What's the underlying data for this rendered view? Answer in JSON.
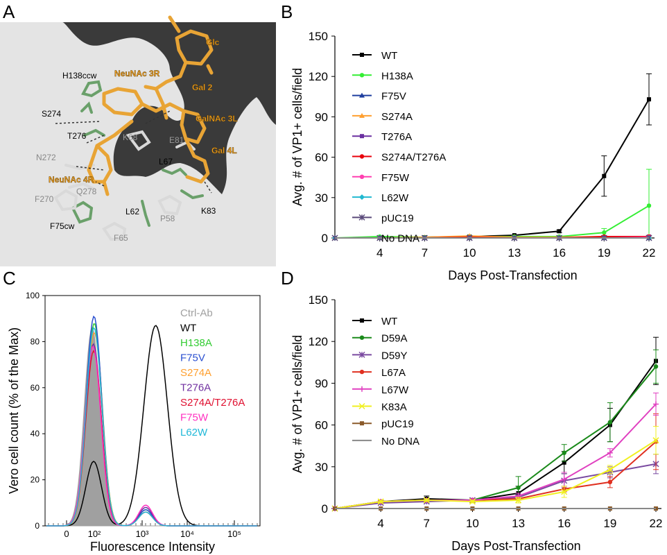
{
  "panels": {
    "A": {
      "letter": "A",
      "residues_dark": [
        "H138ccw",
        "S274",
        "T276",
        "L67",
        "L62",
        "K83",
        "F75cw"
      ],
      "residues_gray": [
        "K68",
        "E81",
        "N272",
        "Q278",
        "F270",
        "P58",
        "F65"
      ],
      "sugars": [
        "Glc",
        "NeuNAc 3R",
        "Gal 2",
        "GalNAc 3L",
        "Gal 4L",
        "NeuNAc 4R"
      ],
      "colors": {
        "surface": "#ebebeb",
        "sugar": "#e8a435",
        "sugar_label": "#f0a020",
        "residue": "#6aa06a"
      }
    },
    "B": {
      "letter": "B"
    },
    "C": {
      "letter": "C"
    },
    "D": {
      "letter": "D"
    }
  },
  "chart_data": [
    {
      "panel": "B",
      "type": "line",
      "xlabel": "Days Post-Transfection",
      "ylabel": "Avg. # of VP1+ cells/field",
      "x": [
        1,
        4,
        7,
        10,
        13,
        16,
        19,
        22
      ],
      "xticks": [
        4,
        7,
        10,
        13,
        16,
        19,
        22
      ],
      "ylim": [
        0,
        150
      ],
      "yticks": [
        0,
        30,
        60,
        90,
        120,
        150
      ],
      "legend_position": "left",
      "series": [
        {
          "name": "WT",
          "color": "#000000",
          "marker": "square",
          "values": [
            0,
            0,
            0.5,
            1,
            2,
            5,
            46,
            103
          ],
          "errors": [
            0,
            0,
            0,
            0,
            0,
            1,
            15,
            19
          ]
        },
        {
          "name": "H138A",
          "color": "#33ee33",
          "marker": "circle",
          "values": [
            0,
            1,
            0.5,
            1,
            1,
            1,
            4,
            24
          ],
          "errors": [
            0,
            0,
            0,
            0,
            0,
            0,
            3,
            27
          ]
        },
        {
          "name": "F75V",
          "color": "#1f3f9f",
          "marker": "triangle",
          "values": [
            0,
            0,
            0,
            0,
            0,
            0,
            0,
            0
          ],
          "errors": [
            0,
            0,
            0,
            0,
            0,
            0,
            0,
            0
          ]
        },
        {
          "name": "S274A",
          "color": "#ff9f2f",
          "marker": "triangle",
          "values": [
            0,
            0,
            0.5,
            1.5,
            0.5,
            0.5,
            1,
            1
          ],
          "errors": [
            0,
            0,
            0,
            0,
            0,
            0,
            0,
            0
          ]
        },
        {
          "name": "T276A",
          "color": "#6a2fa0",
          "marker": "square",
          "values": [
            0,
            0,
            0,
            0,
            0,
            0,
            0.5,
            1
          ],
          "errors": [
            0,
            0,
            0,
            0,
            0,
            0,
            0,
            0
          ]
        },
        {
          "name": "S274A/T276A",
          "color": "#e8000b",
          "marker": "circle",
          "values": [
            0,
            0,
            0,
            0.5,
            0,
            0,
            1,
            1
          ],
          "errors": [
            0,
            0,
            0,
            0,
            0,
            0,
            0,
            0
          ]
        },
        {
          "name": "F75W",
          "color": "#ff3fb0",
          "marker": "circle",
          "values": [
            0,
            0,
            0,
            0,
            0,
            0,
            0,
            0.5
          ],
          "errors": [
            0,
            0,
            0,
            0,
            0,
            0,
            0,
            0
          ]
        },
        {
          "name": "L62W",
          "color": "#20b8d0",
          "marker": "diamond",
          "values": [
            0,
            0,
            0,
            0,
            0,
            0,
            0,
            0
          ],
          "errors": [
            0,
            0,
            0,
            0,
            0,
            0,
            0,
            0
          ]
        },
        {
          "name": "pUC19",
          "color": "#5a4a7a",
          "marker": "star",
          "values": [
            0,
            0,
            0,
            0,
            0,
            0,
            0,
            0
          ],
          "errors": [
            0,
            0,
            0,
            0,
            0,
            0,
            0,
            0
          ]
        },
        {
          "name": "No DNA",
          "color": "#888888",
          "marker": "none",
          "values": [
            0,
            0,
            0,
            0,
            0,
            0,
            0,
            0
          ],
          "errors": [
            0,
            0,
            0,
            0,
            0,
            0,
            0,
            0
          ]
        }
      ]
    },
    {
      "panel": "C",
      "type": "area",
      "xlabel": "Fluorescence Intensity",
      "ylabel": "Vero cell count (% of the Max)",
      "xscale": "log",
      "xticks": [
        "0",
        "10²",
        "10³",
        "10⁴",
        "10⁵"
      ],
      "xtick_values": [
        0,
        100,
        1000,
        10000,
        100000
      ],
      "ylim": [
        0,
        100
      ],
      "yticks": [
        0,
        20,
        40,
        60,
        80,
        100
      ],
      "legend_position": "top-right",
      "series": [
        {
          "name": "Ctrl-Ab",
          "color": "#a0a0a0",
          "fill": true,
          "peak_x": 70,
          "peak_y": 86,
          "second_peak_x": null,
          "second_peak_y": null
        },
        {
          "name": "WT",
          "color": "#000000",
          "fill": false,
          "peak_x": 90,
          "peak_y": 28,
          "second_peak_x": 2000,
          "second_peak_y": 87
        },
        {
          "name": "H138A",
          "color": "#33cc33",
          "fill": false,
          "peak_x": 100,
          "peak_y": 88,
          "second_peak_x": 1200,
          "second_peak_y": 7
        },
        {
          "name": "F75V",
          "color": "#2a4fd0",
          "fill": false,
          "peak_x": 95,
          "peak_y": 91,
          "second_peak_x": 1200,
          "second_peak_y": 7
        },
        {
          "name": "S274A",
          "color": "#ffa030",
          "fill": false,
          "peak_x": 100,
          "peak_y": 84,
          "second_peak_x": 1200,
          "second_peak_y": 6
        },
        {
          "name": "T276A",
          "color": "#7030a0",
          "fill": false,
          "peak_x": 85,
          "peak_y": 79,
          "second_peak_x": 1200,
          "second_peak_y": 8
        },
        {
          "name": "S274A/T276A",
          "color": "#e01030",
          "fill": false,
          "peak_x": 90,
          "peak_y": 76,
          "second_peak_x": 1200,
          "second_peak_y": 6
        },
        {
          "name": "F75W",
          "color": "#ff30c0",
          "fill": false,
          "peak_x": 80,
          "peak_y": 78,
          "second_peak_x": 1200,
          "second_peak_y": 9
        },
        {
          "name": "L62W",
          "color": "#20b8d8",
          "fill": false,
          "peak_x": 95,
          "peak_y": 86,
          "second_peak_x": 1200,
          "second_peak_y": 6
        }
      ]
    },
    {
      "panel": "D",
      "type": "line",
      "xlabel": "Days Post-Transfection",
      "ylabel": "Avg. # of VP1+ cells/field",
      "x": [
        1,
        4,
        7,
        10,
        13,
        16,
        19,
        22
      ],
      "xticks": [
        4,
        7,
        10,
        13,
        16,
        19,
        22
      ],
      "ylim": [
        0,
        150
      ],
      "yticks": [
        0,
        30,
        60,
        90,
        120,
        150
      ],
      "legend_position": "left",
      "series": [
        {
          "name": "WT",
          "color": "#000000",
          "marker": "square",
          "values": [
            0,
            5,
            7,
            6,
            11,
            33,
            60,
            106
          ],
          "errors": [
            0,
            1,
            2,
            1,
            5,
            8,
            12,
            17
          ]
        },
        {
          "name": "D59A",
          "color": "#1a8a1a",
          "marker": "circle",
          "values": [
            0,
            5,
            6,
            6,
            15,
            40,
            62,
            102
          ],
          "errors": [
            0,
            1,
            1,
            1,
            8,
            6,
            14,
            12
          ]
        },
        {
          "name": "D59Y",
          "color": "#7a4aa0",
          "marker": "star",
          "values": [
            0,
            4,
            5,
            6,
            8,
            20,
            26,
            32
          ],
          "errors": [
            0,
            1,
            1,
            1,
            2,
            5,
            4,
            7
          ]
        },
        {
          "name": "L67A",
          "color": "#e03020",
          "marker": "circle",
          "values": [
            0,
            5,
            6,
            6,
            7,
            14,
            19,
            48
          ],
          "errors": [
            0,
            1,
            1,
            1,
            1,
            2,
            4,
            20
          ]
        },
        {
          "name": "L67W",
          "color": "#e040c0",
          "marker": "plus",
          "values": [
            0,
            5,
            6,
            6,
            9,
            21,
            40,
            75
          ],
          "errors": [
            0,
            1,
            1,
            1,
            2,
            5,
            3,
            8
          ]
        },
        {
          "name": "K83A",
          "color": "#f0f020",
          "marker": "x",
          "values": [
            0,
            5,
            6,
            5,
            6,
            12,
            28,
            49
          ],
          "errors": [
            0,
            1,
            1,
            1,
            2,
            4,
            3,
            10
          ]
        },
        {
          "name": "pUC19",
          "color": "#8a5a2a",
          "marker": "square",
          "values": [
            0,
            0,
            0,
            0,
            0,
            0,
            0,
            0
          ],
          "errors": [
            0,
            0,
            0,
            0,
            0,
            0,
            0,
            0
          ]
        },
        {
          "name": "No DNA",
          "color": "#888888",
          "marker": "none",
          "values": [
            0,
            0,
            0,
            0,
            0,
            0,
            0,
            0
          ],
          "errors": [
            0,
            0,
            0,
            0,
            0,
            0,
            0,
            0
          ]
        }
      ]
    }
  ]
}
